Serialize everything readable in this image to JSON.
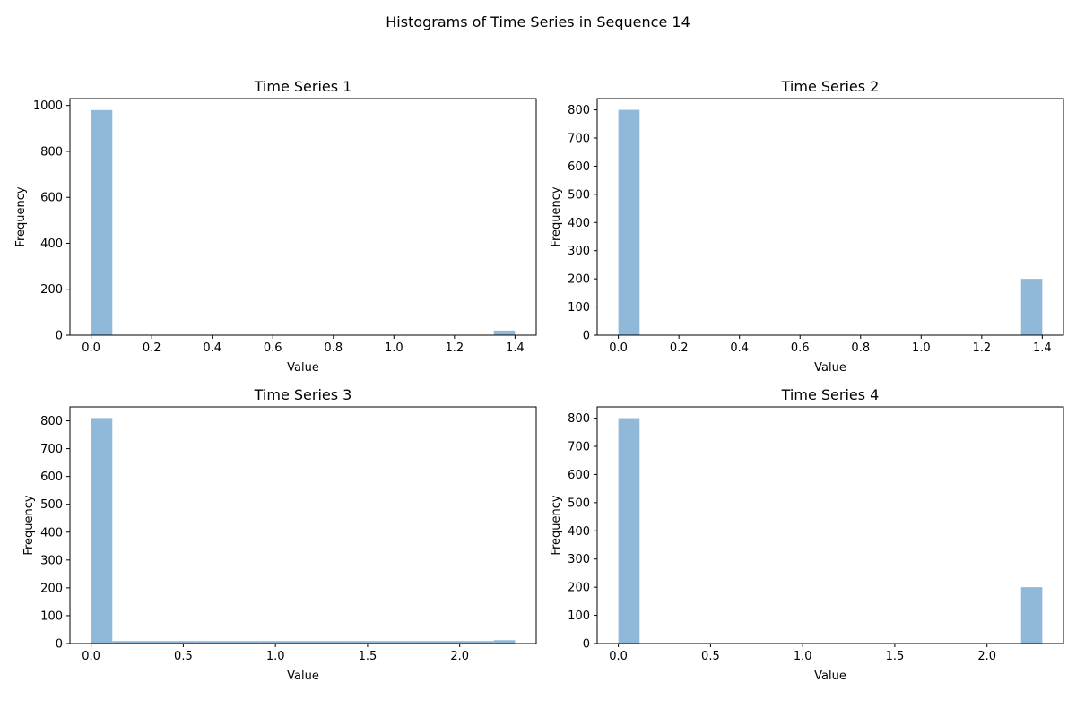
{
  "figure": {
    "suptitle": "Histograms of Time Series in Sequence 14",
    "bar_color": "#8fb8d9"
  },
  "chart_data": [
    {
      "type": "bar",
      "title": "Time Series 1",
      "xlabel": "Value",
      "ylabel": "Frequency",
      "xlim": [
        -0.07,
        1.47
      ],
      "ylim": [
        0,
        1030
      ],
      "xticks": [
        0.0,
        0.2,
        0.4,
        0.6,
        0.8,
        1.0,
        1.2,
        1.4
      ],
      "xtick_labels": [
        "0.0",
        "0.2",
        "0.4",
        "0.6",
        "0.8",
        "1.0",
        "1.2",
        "1.4"
      ],
      "yticks": [
        0,
        200,
        400,
        600,
        800,
        1000
      ],
      "ytick_labels": [
        "0",
        "200",
        "400",
        "600",
        "800",
        "1000"
      ],
      "bins": [
        {
          "x0": 0.0,
          "x1": 0.07,
          "value": 980
        },
        {
          "x0": 1.33,
          "x1": 1.4,
          "value": 20
        }
      ]
    },
    {
      "type": "bar",
      "title": "Time Series 2",
      "xlabel": "Value",
      "ylabel": "Frequency",
      "xlim": [
        -0.07,
        1.47
      ],
      "ylim": [
        0,
        840
      ],
      "xticks": [
        0.0,
        0.2,
        0.4,
        0.6,
        0.8,
        1.0,
        1.2,
        1.4
      ],
      "xtick_labels": [
        "0.0",
        "0.2",
        "0.4",
        "0.6",
        "0.8",
        "1.0",
        "1.2",
        "1.4"
      ],
      "yticks": [
        0,
        100,
        200,
        300,
        400,
        500,
        600,
        700,
        800
      ],
      "ytick_labels": [
        "0",
        "100",
        "200",
        "300",
        "400",
        "500",
        "600",
        "700",
        "800"
      ],
      "bins": [
        {
          "x0": 0.0,
          "x1": 0.07,
          "value": 800
        },
        {
          "x0": 1.33,
          "x1": 1.4,
          "value": 200
        }
      ]
    },
    {
      "type": "bar",
      "title": "Time Series 3",
      "xlabel": "Value",
      "ylabel": "Frequency",
      "xlim": [
        -0.115,
        2.415
      ],
      "ylim": [
        0,
        850
      ],
      "xticks": [
        0.0,
        0.5,
        1.0,
        1.5,
        2.0
      ],
      "xtick_labels": [
        "0.0",
        "0.5",
        "1.0",
        "1.5",
        "2.0"
      ],
      "yticks": [
        0,
        100,
        200,
        300,
        400,
        500,
        600,
        700,
        800
      ],
      "ytick_labels": [
        "0",
        "100",
        "200",
        "300",
        "400",
        "500",
        "600",
        "700",
        "800"
      ],
      "bins": [
        {
          "x0": 0.0,
          "x1": 0.115,
          "value": 810
        },
        {
          "x0": 0.115,
          "x1": 0.23,
          "value": 9
        },
        {
          "x0": 0.23,
          "x1": 0.345,
          "value": 9
        },
        {
          "x0": 0.345,
          "x1": 0.46,
          "value": 9
        },
        {
          "x0": 0.46,
          "x1": 0.575,
          "value": 9
        },
        {
          "x0": 0.575,
          "x1": 0.69,
          "value": 9
        },
        {
          "x0": 0.69,
          "x1": 0.805,
          "value": 9
        },
        {
          "x0": 0.805,
          "x1": 0.92,
          "value": 9
        },
        {
          "x0": 0.92,
          "x1": 1.035,
          "value": 9
        },
        {
          "x0": 1.035,
          "x1": 1.15,
          "value": 9
        },
        {
          "x0": 1.15,
          "x1": 1.265,
          "value": 9
        },
        {
          "x0": 1.265,
          "x1": 1.38,
          "value": 9
        },
        {
          "x0": 1.38,
          "x1": 1.495,
          "value": 9
        },
        {
          "x0": 1.495,
          "x1": 1.61,
          "value": 9
        },
        {
          "x0": 1.61,
          "x1": 1.725,
          "value": 9
        },
        {
          "x0": 1.725,
          "x1": 1.84,
          "value": 9
        },
        {
          "x0": 1.84,
          "x1": 1.955,
          "value": 9
        },
        {
          "x0": 1.955,
          "x1": 2.07,
          "value": 9
        },
        {
          "x0": 2.07,
          "x1": 2.185,
          "value": 9
        },
        {
          "x0": 2.185,
          "x1": 2.3,
          "value": 12
        }
      ]
    },
    {
      "type": "bar",
      "title": "Time Series 4",
      "xlabel": "Value",
      "ylabel": "Frequency",
      "xlim": [
        -0.115,
        2.415
      ],
      "ylim": [
        0,
        840
      ],
      "xticks": [
        0.0,
        0.5,
        1.0,
        1.5,
        2.0
      ],
      "xtick_labels": [
        "0.0",
        "0.5",
        "1.0",
        "1.5",
        "2.0"
      ],
      "yticks": [
        0,
        100,
        200,
        300,
        400,
        500,
        600,
        700,
        800
      ],
      "ytick_labels": [
        "0",
        "100",
        "200",
        "300",
        "400",
        "500",
        "600",
        "700",
        "800"
      ],
      "bins": [
        {
          "x0": 0.0,
          "x1": 0.115,
          "value": 800
        },
        {
          "x0": 2.185,
          "x1": 2.3,
          "value": 200
        }
      ]
    }
  ]
}
